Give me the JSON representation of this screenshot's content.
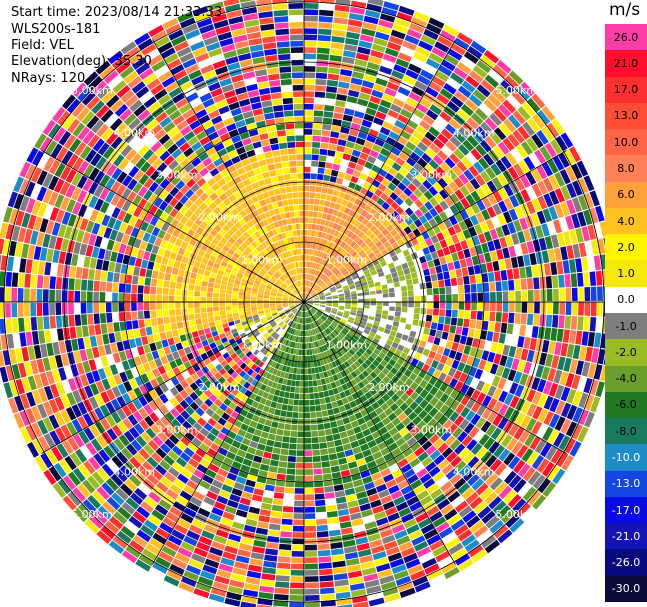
{
  "info": {
    "start_time": "Start time: 2023/08/14 21:33:33",
    "instrument": "WLS200s-181",
    "field": "Field: VEL",
    "elevation": "Elevation(deg): 35.30",
    "nrays": "NRays: 120"
  },
  "chart_data": {
    "type": "heatmap",
    "title": "",
    "field": "VEL",
    "unit": "m/s",
    "nrays": 120,
    "range_rings_km": [
      1.0,
      2.0,
      3.0,
      4.0,
      5.0
    ],
    "ring_labels": [
      "1.00km",
      "2.00km",
      "3.00km",
      "4.00km",
      "5.00km"
    ],
    "spokes_deg": [
      0,
      30,
      60,
      90,
      120,
      150,
      180,
      210,
      240,
      270,
      300,
      330
    ],
    "max_range_km": 5.0,
    "colorbar": {
      "ticks": [
        "26.0",
        "21.0",
        "17.0",
        "13.0",
        "10.0",
        "8.0",
        "6.0",
        "4.0",
        "2.0",
        "1.0",
        "0.0",
        "-1.0",
        "-2.0",
        "-4.0",
        "-6.0",
        "-8.0",
        "-10.0",
        "-13.0",
        "-17.0",
        "-21.0",
        "-26.0",
        "-30.0"
      ],
      "colors": [
        "#ff3ca8",
        "#ff0f2d",
        "#ff2f30",
        "#ff4d36",
        "#ff6447",
        "#ff8155",
        "#ffa03b",
        "#ffc21f",
        "#fff402",
        "#f7e80b",
        "#ffffff",
        "#7e7e7e",
        "#9abb24",
        "#6a9f2d",
        "#227924",
        "#1a7a5f",
        "#1e8cc9",
        "#1446e6",
        "#0a0ae6",
        "#1414b4",
        "#0a0a80",
        "#0b0b3a"
      ]
    },
    "velocity_structure": [
      {
        "azimuth_from_deg": 210,
        "azimuth_to_deg": 255,
        "range_from_km": 0,
        "range_to_km": 1.2,
        "velocity_ms": 0.0,
        "note": "near-zero band"
      },
      {
        "azimuth_from_deg": 255,
        "azimuth_to_deg": 360,
        "range_from_km": 0,
        "range_to_km": 2.5,
        "velocity_ms": 4.0
      },
      {
        "azimuth_from_deg": 0,
        "azimuth_to_deg": 60,
        "range_from_km": 0,
        "range_to_km": 2.0,
        "velocity_ms": 6.0
      },
      {
        "azimuth_from_deg": 60,
        "azimuth_to_deg": 120,
        "range_from_km": 0,
        "range_to_km": 2.0,
        "velocity_ms": -1.0
      },
      {
        "azimuth_from_deg": 120,
        "azimuth_to_deg": 210,
        "range_from_km": 0,
        "range_to_km": 3.0,
        "velocity_ms": -5.0
      },
      {
        "azimuth_from_deg": 0,
        "azimuth_to_deg": 360,
        "range_from_km": 3.0,
        "range_to_km": 5.2,
        "velocity_ms": null,
        "note": "noise"
      }
    ]
  }
}
